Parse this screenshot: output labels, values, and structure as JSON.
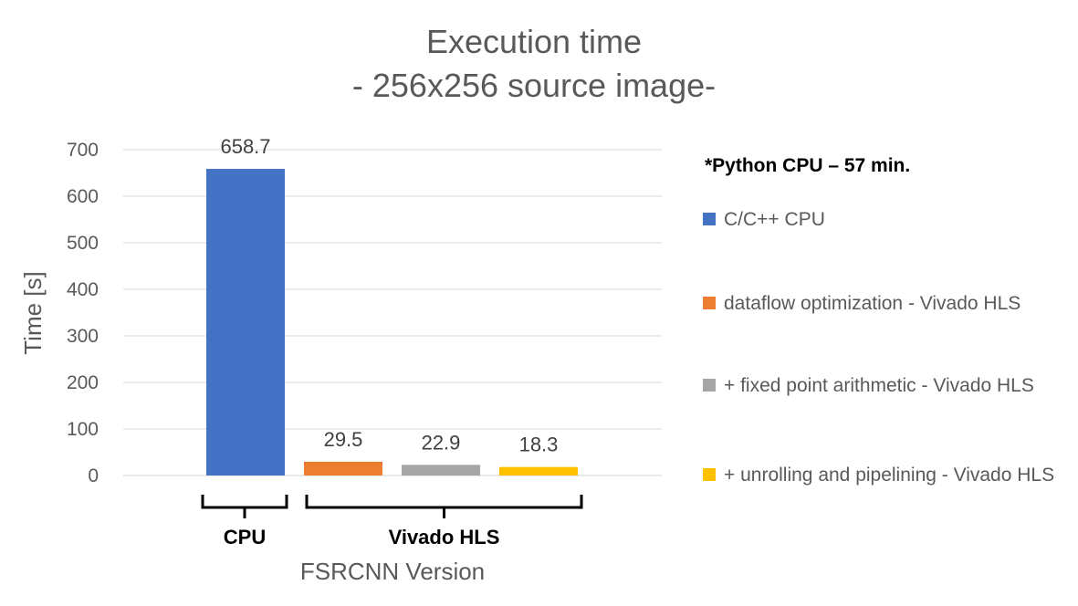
{
  "chart_data": {
    "type": "bar",
    "title": [
      "Execution time",
      "- 256x256 source image-"
    ],
    "xlabel": "FSRCNN Version",
    "ylabel": "Time [s]",
    "ylim": [
      0,
      700
    ],
    "yticks": [
      0,
      100,
      200,
      300,
      400,
      500,
      600,
      700
    ],
    "grid": true,
    "legend_position": "right",
    "legend_note": "*Python CPU – 57 min.",
    "series": [
      {
        "name": "C/C++ CPU",
        "value": 658.7,
        "label": "658.7",
        "color": "#4472c4"
      },
      {
        "name": "dataflow optimization -  Vivado HLS",
        "value": 29.5,
        "label": "29.5",
        "color": "#ed7d31"
      },
      {
        "name": "+ fixed point arithmetic - Vivado HLS",
        "value": 22.9,
        "label": "22.9",
        "color": "#a5a5a5"
      },
      {
        "name": "+ unrolling and pipelining - Vivado HLS",
        "value": 18.3,
        "label": "18.3",
        "color": "#ffc000"
      }
    ],
    "groups": [
      {
        "label": "CPU",
        "series_index": [
          0
        ]
      },
      {
        "label": "Vivado HLS",
        "series_index": [
          1,
          2,
          3
        ]
      }
    ]
  }
}
